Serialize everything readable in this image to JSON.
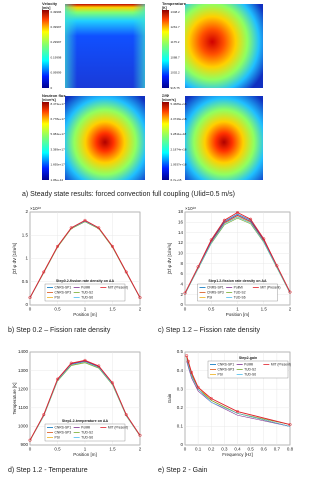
{
  "panels": [
    {
      "title": "Velocity",
      "unit": "[m/s]",
      "colorbar_labels": [
        "0.49996",
        "0.39997",
        "0.29997",
        "0.19998",
        "0.09999",
        "0"
      ]
    },
    {
      "title": "Temperature",
      "unit": "[K]",
      "colorbar_labels": [
        "1348.2",
        "1261.7",
        "1175.2",
        "1088.7",
        "1002.2",
        "915.75"
      ]
    },
    {
      "title": "Neutron flux",
      "unit": "[n/cm²s]",
      "colorbar_labels": [
        "8.473e+17",
        "6.778e+17",
        "5.084e+17",
        "3.389e+17",
        "1.695e+17",
        "1.05e+14"
      ]
    },
    {
      "title": "ΣfΦ",
      "unit": "[n/cm³s]",
      "colorbar_labels": [
        "5.4686e+18",
        "4.3749e+18",
        "3.2811e+18",
        "2.1874e+18",
        "1.0937e+18",
        "6.7e+15"
      ]
    }
  ],
  "captions": [
    "a)   Steady state results: forced convection full coupling (Ulid=0.5 m/s)",
    "b)   Step 0.2 – Fission rate density",
    "c)   Step 1.2 – Fission rate density",
    "d)   Step 1.2 - Temperature",
    "e)   Step 2 - Gain"
  ],
  "chart_data": [
    {
      "type": "line",
      "title": "Step0.2-fission rate density on AA",
      "x_label": "Position [m]",
      "y_label": "∫Σf φ dV [1/m³s]",
      "y_multiplier": "×10¹⁸",
      "grid": true,
      "legend_position": "lower center",
      "x": [
        0,
        0.25,
        0.5,
        0.75,
        1,
        1.25,
        1.5,
        1.75,
        2
      ],
      "xlim": [
        0,
        2
      ],
      "xticks": [
        0,
        0.5,
        1,
        1.5,
        2
      ],
      "ylim": [
        0,
        2
      ],
      "yticks": [
        0,
        0.5,
        1,
        1.5,
        2
      ],
      "series": [
        {
          "name": "CNRS-SP1",
          "color": "#0072bd",
          "values": [
            0.15,
            0.7,
            1.25,
            1.65,
            1.8,
            1.65,
            1.25,
            0.7,
            0.15
          ]
        },
        {
          "name": "CNRS-SP3",
          "color": "#d95319",
          "values": [
            0.15,
            0.71,
            1.26,
            1.66,
            1.81,
            1.66,
            1.26,
            0.71,
            0.15
          ]
        },
        {
          "name": "PSI",
          "color": "#edb120",
          "values": [
            0.15,
            0.7,
            1.24,
            1.64,
            1.79,
            1.64,
            1.24,
            0.7,
            0.15
          ]
        },
        {
          "name": "PoliMi",
          "color": "#7e2f8e",
          "values": [
            0.16,
            0.71,
            1.25,
            1.65,
            1.8,
            1.65,
            1.25,
            0.71,
            0.16
          ]
        },
        {
          "name": "TUD-S2",
          "color": "#77ac30",
          "values": [
            0.15,
            0.69,
            1.24,
            1.64,
            1.79,
            1.64,
            1.24,
            0.69,
            0.15
          ]
        },
        {
          "name": "TUD-S6",
          "color": "#4dbeee",
          "values": [
            0.15,
            0.7,
            1.25,
            1.65,
            1.8,
            1.65,
            1.25,
            0.7,
            0.15
          ]
        },
        {
          "name": "MIT (Present)",
          "color": "#e0202a",
          "values": [
            0.16,
            0.71,
            1.26,
            1.66,
            1.82,
            1.66,
            1.26,
            0.71,
            0.16
          ]
        }
      ]
    },
    {
      "type": "line",
      "title": "Step1.2-fission rate density on AA",
      "x_label": "Position [m]",
      "y_label": "∫Σf φ dV [1/m³s]",
      "y_multiplier": "×10¹⁸",
      "grid": true,
      "legend_position": "lower center",
      "x": [
        0,
        0.25,
        0.5,
        0.75,
        1,
        1.25,
        1.5,
        1.75,
        2
      ],
      "xlim": [
        0,
        2
      ],
      "xticks": [
        0,
        0.5,
        1,
        1.5,
        2
      ],
      "ylim": [
        0,
        18
      ],
      "yticks": [
        0,
        2,
        4,
        6,
        8,
        10,
        12,
        14,
        16,
        18
      ],
      "series": [
        {
          "name": "CNRS-SP1",
          "color": "#0072bd",
          "values": [
            2.2,
            7.3,
            12.4,
            16.2,
            17.6,
            16.4,
            12.6,
            7.5,
            2.4
          ]
        },
        {
          "name": "CNRS-SP3",
          "color": "#d95319",
          "values": [
            2.2,
            7.2,
            12.2,
            15.9,
            17.3,
            16.1,
            12.4,
            7.4,
            2.4
          ]
        },
        {
          "name": "PSI",
          "color": "#edb120",
          "values": [
            2.1,
            7.1,
            12.1,
            15.8,
            17.1,
            16,
            12.3,
            7.3,
            2.3
          ]
        },
        {
          "name": "PoliMi",
          "color": "#7e2f8e",
          "values": [
            2.2,
            7.2,
            12.3,
            16,
            17.4,
            16.2,
            12.5,
            7.4,
            2.4
          ]
        },
        {
          "name": "TUD-S2",
          "color": "#77ac30",
          "values": [
            2.1,
            7,
            11.9,
            15.5,
            16.8,
            15.7,
            12.1,
            7.2,
            2.3
          ]
        },
        {
          "name": "TUD-S6",
          "color": "#4dbeee",
          "values": [
            2.1,
            7.1,
            12,
            15.7,
            17,
            15.9,
            12.2,
            7.3,
            2.3
          ]
        },
        {
          "name": "MIT (Present)",
          "color": "#e0202a",
          "values": [
            2.3,
            7.4,
            12.6,
            16.4,
            17.9,
            16.6,
            12.8,
            7.6,
            2.5
          ]
        }
      ]
    },
    {
      "type": "line",
      "title": "Step1.2-temperature on AA",
      "x_label": "Position [m]",
      "y_label": "Temperature [K]",
      "grid": true,
      "legend_position": "lower center",
      "x": [
        0,
        0.25,
        0.5,
        0.75,
        1,
        1.25,
        1.5,
        1.75,
        2
      ],
      "xlim": [
        0,
        2
      ],
      "xticks": [
        0,
        0.5,
        1,
        1.5,
        2
      ],
      "ylim": [
        900,
        1400
      ],
      "yticks": [
        900,
        1000,
        1100,
        1200,
        1300,
        1400
      ],
      "series": [
        {
          "name": "CNRS-SP1",
          "color": "#0072bd",
          "values": [
            925,
            1060,
            1250,
            1335,
            1350,
            1320,
            1230,
            1060,
            950
          ]
        },
        {
          "name": "CNRS-SP3",
          "color": "#d95319",
          "values": [
            926,
            1062,
            1252,
            1337,
            1352,
            1322,
            1232,
            1062,
            951
          ]
        },
        {
          "name": "PSI",
          "color": "#edb120",
          "values": [
            924,
            1058,
            1246,
            1330,
            1345,
            1316,
            1226,
            1058,
            949
          ]
        },
        {
          "name": "PoliMi",
          "color": "#7e2f8e",
          "values": [
            925,
            1061,
            1251,
            1336,
            1351,
            1321,
            1231,
            1061,
            950
          ]
        },
        {
          "name": "TUD-S2",
          "color": "#77ac30",
          "values": [
            923,
            1055,
            1243,
            1327,
            1342,
            1313,
            1223,
            1056,
            948
          ]
        },
        {
          "name": "TUD-S6",
          "color": "#4dbeee",
          "values": [
            924,
            1057,
            1247,
            1332,
            1347,
            1317,
            1227,
            1058,
            949
          ]
        },
        {
          "name": "MIT (Present)",
          "color": "#e0202a",
          "values": [
            926,
            1063,
            1254,
            1340,
            1355,
            1325,
            1234,
            1063,
            952
          ]
        }
      ]
    },
    {
      "type": "line",
      "title": "Step2-gain",
      "x_label": "Frequency [Hz]",
      "y_label": "Gain",
      "grid": true,
      "legend_position": "upper right",
      "x": [
        0.0125,
        0.025,
        0.05,
        0.1,
        0.2,
        0.4,
        0.8
      ],
      "xlim": [
        0,
        0.8
      ],
      "xticks": [
        0,
        0.1,
        0.2,
        0.3,
        0.4,
        0.5,
        0.6,
        0.7,
        0.8
      ],
      "ylim": [
        0,
        0.5
      ],
      "yticks": [
        0,
        0.1,
        0.2,
        0.3,
        0.4,
        0.5
      ],
      "series": [
        {
          "name": "CNRS-SP1",
          "color": "#0072bd",
          "values": [
            0.47,
            0.44,
            0.38,
            0.3,
            0.24,
            0.17,
            0.1
          ]
        },
        {
          "name": "CNRS-SP3",
          "color": "#d95319",
          "values": [
            0.46,
            0.43,
            0.37,
            0.3,
            0.24,
            0.17,
            0.1
          ]
        },
        {
          "name": "PSI",
          "color": "#edb120",
          "values": [
            0.47,
            0.44,
            0.38,
            0.31,
            0.24,
            0.17,
            0.1
          ]
        },
        {
          "name": "PoliMi",
          "color": "#7e2f8e",
          "values": [
            0.45,
            0.42,
            0.36,
            0.29,
            0.23,
            0.16,
            0.1
          ]
        },
        {
          "name": "TUD-S2",
          "color": "#77ac30",
          "values": [
            0.47,
            0.44,
            0.38,
            0.3,
            0.24,
            0.17,
            0.11
          ]
        },
        {
          "name": "TUD-S6",
          "color": "#4dbeee",
          "values": [
            0.46,
            0.43,
            0.37,
            0.3,
            0.23,
            0.17,
            0.1
          ]
        },
        {
          "name": "MIT (Present)",
          "color": "#e0202a",
          "values": [
            0.48,
            0.45,
            0.39,
            0.31,
            0.25,
            0.18,
            0.11
          ]
        }
      ]
    }
  ]
}
